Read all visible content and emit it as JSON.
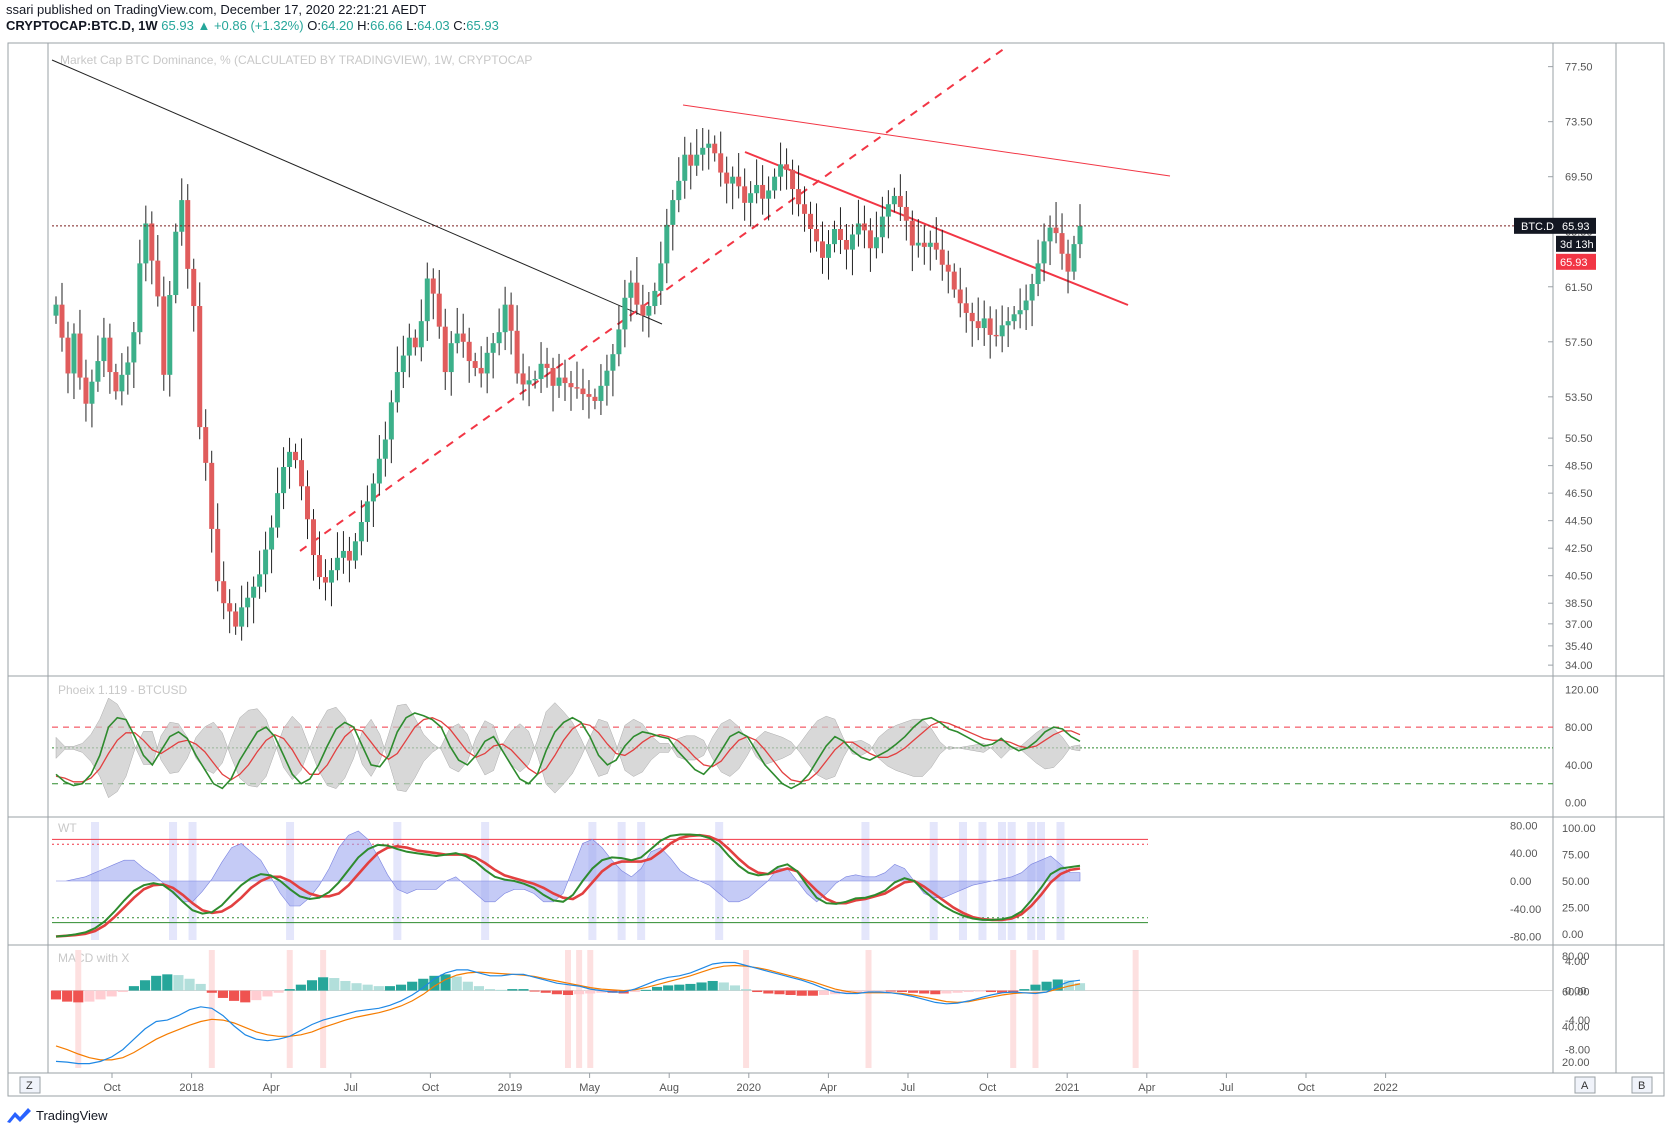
{
  "header": {
    "published": "ssari published on TradingView.com, December 17, 2020 22:21:21 AEDT",
    "symbol": "CRYPTOCAP:BTC.D, 1W",
    "price": "65.93",
    "change": "▲ +0.86 (+1.32%)",
    "o_label": "O:",
    "o": "64.20",
    "h_label": "H:",
    "h": "66.66",
    "l_label": "L:",
    "l": "64.03",
    "c_label": "C:",
    "c": "65.93"
  },
  "chart_data": [
    {
      "type": "candlestick",
      "title": "Market Cap BTC Dominance, % (CALCULATED BY TRADINGVIEW), 1W, CRYPTOCAP",
      "y_ticks": [
        77.5,
        73.5,
        69.5,
        65.5,
        61.5,
        57.5,
        53.5,
        50.5,
        48.5,
        46.5,
        44.5,
        42.5,
        40.5,
        38.5,
        37.0,
        35.4,
        34.0
      ],
      "ylim": [
        33.5,
        79
      ],
      "x_ticks": [
        "Oct",
        "2018",
        "Apr",
        "Jul",
        "Oct",
        "2019",
        "May",
        "Aug",
        "2020",
        "Apr",
        "Jul",
        "Oct",
        "2021",
        "Apr",
        "Jul",
        "Oct",
        "2022"
      ],
      "last_price": 65.93,
      "price_labels": [
        {
          "text": "BTC.D",
          "value": "65.93"
        },
        {
          "text": "3d 13h"
        },
        {
          "text": "65.93"
        }
      ],
      "colors": {
        "up": "#3cb08a",
        "down": "#e05c5c",
        "trendline_red": "#f23645",
        "trendline_black": "#222222"
      },
      "closes": [
        60.2,
        57.8,
        55.2,
        58.1,
        54.9,
        53.0,
        54.6,
        56.1,
        57.8,
        55.3,
        53.9,
        55.1,
        56.0,
        58.2,
        63.2,
        66.1,
        63.4,
        60.8,
        55.1,
        60.9,
        65.5,
        67.8,
        62.8,
        60.1,
        51.3,
        48.7,
        43.9,
        40.1,
        38.5,
        37.9,
        36.8,
        38.2,
        38.9,
        39.7,
        40.6,
        42.4,
        44.0,
        46.5,
        48.4,
        49.5,
        48.9,
        47.0,
        44.6,
        42.0,
        40.4,
        40.0,
        40.9,
        41.8,
        42.3,
        41.6,
        43.0,
        44.4,
        45.9,
        47.2,
        49.0,
        50.4,
        53.1,
        55.3,
        56.5,
        57.8,
        57.1,
        59.0,
        62.1,
        61.0,
        58.6,
        55.3,
        57.4,
        58.1,
        57.5,
        56.1,
        55.6,
        55.2,
        56.7,
        57.4,
        58.2,
        60.2,
        58.3,
        55.2,
        54.4,
        54.7,
        54.8,
        55.9,
        55.6,
        54.3,
        54.9,
        54.5,
        54.2,
        54.1,
        53.7,
        53.5,
        53.2,
        54.3,
        55.4,
        56.6,
        58.4,
        60.7,
        61.8,
        60.2,
        59.4,
        60.1,
        61.2,
        63.2,
        66.0,
        67.8,
        69.2,
        71.1,
        70.3,
        71.1,
        71.6,
        71.9,
        71.2,
        69.8,
        69.0,
        69.5,
        68.8,
        67.6,
        68.3,
        68.9,
        67.9,
        68.5,
        69.5,
        70.4,
        70.0,
        68.6,
        67.5,
        66.8,
        65.7,
        64.8,
        63.6,
        64.6,
        65.7,
        64.9,
        64.2,
        65.3,
        66.1,
        65.6,
        64.3,
        65.1,
        66.6,
        67.5,
        68.1,
        67.3,
        66.3,
        64.5,
        64.7,
        64.4,
        64.7,
        64.2,
        63.1,
        62.6,
        61.3,
        60.3,
        59.6,
        59.0,
        58.5,
        59.2,
        58.0,
        57.9,
        58.7,
        59.0,
        59.5,
        59.8,
        60.5,
        61.7,
        63.2,
        64.8,
        65.8,
        65.4,
        63.9,
        62.6,
        64.6,
        65.93
      ]
    },
    {
      "type": "line",
      "title": "Phoeix 1.119 - BTCUSD",
      "y_ticks": [
        120.0,
        80.0,
        40.0,
        0.0
      ],
      "ylim": [
        -10,
        130
      ],
      "levels": [
        80,
        58,
        20
      ],
      "series": [
        {
          "values": [
            30,
            22,
            18,
            20,
            30,
            50,
            80,
            90,
            88,
            70,
            50,
            40,
            55,
            70,
            75,
            68,
            50,
            35,
            20,
            15,
            25,
            45,
            60,
            75,
            80,
            70,
            50,
            30,
            20,
            25,
            40,
            60,
            78,
            85,
            80,
            60,
            40,
            38,
            50,
            75,
            90,
            95,
            92,
            88,
            80,
            60,
            45,
            40,
            50,
            65,
            70,
            55,
            40,
            25,
            20,
            30,
            55,
            75,
            85,
            90,
            85,
            70,
            50,
            40,
            45,
            60,
            70,
            75,
            73,
            70,
            68,
            55,
            45,
            35,
            30,
            40,
            55,
            70,
            75,
            70,
            55,
            40,
            30,
            20,
            15,
            20,
            30,
            45,
            60,
            70,
            65,
            55,
            48,
            45,
            50,
            55,
            62,
            70,
            80,
            88,
            90,
            85,
            78,
            75,
            70,
            65,
            60,
            62,
            68,
            60,
            55,
            58,
            65,
            75,
            80,
            78,
            70,
            65
          ]
        },
        {
          "values": [
            28,
            26,
            22,
            22,
            26,
            36,
            52,
            66,
            74,
            74,
            66,
            56,
            52,
            58,
            64,
            66,
            62,
            54,
            42,
            30,
            24,
            30,
            40,
            54,
            66,
            72,
            68,
            56,
            40,
            30,
            30,
            40,
            56,
            70,
            78,
            76,
            64,
            52,
            46,
            52,
            66,
            80,
            88,
            90,
            86,
            78,
            66,
            54,
            48,
            52,
            60,
            62,
            56,
            46,
            36,
            30,
            36,
            50,
            66,
            78,
            84,
            82,
            74,
            62,
            52,
            50,
            56,
            64,
            70,
            72,
            70,
            66,
            58,
            48,
            40,
            38,
            44,
            56,
            66,
            70,
            66,
            56,
            44,
            32,
            24,
            22,
            24,
            32,
            44,
            56,
            64,
            64,
            58,
            52,
            48,
            48,
            52,
            58,
            66,
            74,
            82,
            86,
            84,
            80,
            76,
            72,
            68,
            66,
            66,
            64,
            60,
            58,
            60,
            66,
            72,
            76,
            76,
            72
          ]
        }
      ],
      "colors": [
        "#2e8b2e",
        "#e24040"
      ]
    },
    {
      "type": "line",
      "title": "WT",
      "y_ticks": [
        80.0,
        40.0,
        0.0,
        -40.0,
        -80.0
      ],
      "y_ticks_right": [
        100.0,
        75.0,
        50.0,
        25.0,
        0.0
      ],
      "ylim": [
        -85,
        85
      ],
      "levels": [
        60,
        53,
        -53,
        -60
      ],
      "series": [
        {
          "values": [
            -80,
            -79,
            -77,
            -74,
            -68,
            -58,
            -44,
            -28,
            -14,
            -6,
            -3,
            -6,
            -16,
            -30,
            -42,
            -47,
            -45,
            -35,
            -20,
            -6,
            4,
            10,
            8,
            0,
            -12,
            -22,
            -26,
            -24,
            -16,
            -2,
            16,
            34,
            46,
            52,
            51,
            46,
            42,
            40,
            38,
            36,
            38,
            40,
            36,
            28,
            16,
            6,
            2,
            0,
            -4,
            -10,
            -20,
            -28,
            -30,
            -20,
            0,
            18,
            30,
            34,
            33,
            30,
            34,
            46,
            58,
            65,
            67,
            67,
            66,
            62,
            52,
            36,
            22,
            12,
            8,
            10,
            20,
            24,
            14,
            -6,
            -24,
            -32,
            -33,
            -30,
            -25,
            -24,
            -20,
            -14,
            -2,
            4,
            0,
            -14,
            -26,
            -36,
            -44,
            -50,
            -54,
            -56,
            -56,
            -55,
            -52,
            -44,
            -28,
            -10,
            10,
            18,
            20,
            22
          ]
        },
        {
          "values": [
            -80,
            -79,
            -78,
            -76,
            -72,
            -64,
            -52,
            -38,
            -24,
            -12,
            -6,
            -5,
            -10,
            -20,
            -32,
            -42,
            -46,
            -44,
            -36,
            -24,
            -10,
            0,
            6,
            6,
            0,
            -10,
            -18,
            -22,
            -22,
            -18,
            -6,
            10,
            26,
            40,
            48,
            50,
            48,
            44,
            42,
            40,
            38,
            38,
            38,
            34,
            26,
            16,
            8,
            4,
            0,
            -4,
            -10,
            -18,
            -24,
            -26,
            -18,
            -2,
            14,
            24,
            28,
            28,
            28,
            32,
            42,
            54,
            62,
            65,
            66,
            64,
            58,
            46,
            32,
            20,
            12,
            10,
            14,
            18,
            14,
            0,
            -14,
            -26,
            -32,
            -32,
            -28,
            -26,
            -22,
            -18,
            -10,
            -2,
            0,
            -8,
            -18,
            -28,
            -38,
            -46,
            -52,
            -55,
            -56,
            -56,
            -54,
            -48,
            -36,
            -20,
            -2,
            10,
            16,
            18
          ]
        }
      ],
      "colors": [
        "#2e8b2e",
        "#e24040"
      ]
    },
    {
      "type": "bar",
      "title": "MACD with X",
      "y_ticks": [
        4.0,
        0.0,
        -4.0,
        -8.0
      ],
      "y_ticks_right": [
        80.0,
        60.0,
        40.0,
        20.0
      ],
      "ylim": [
        -10.5,
        5.5
      ],
      "macd": [
        -9.6,
        -9.7,
        -9.9,
        -9.9,
        -9.6,
        -9.0,
        -8.0,
        -6.6,
        -5.2,
        -4.2,
        -4.0,
        -3.4,
        -2.6,
        -2.2,
        -2.4,
        -3.4,
        -4.8,
        -6.0,
        -6.6,
        -6.8,
        -6.6,
        -6.2,
        -5.4,
        -4.6,
        -4.0,
        -3.6,
        -3.2,
        -2.8,
        -2.6,
        -2.4,
        -2.0,
        -1.4,
        -0.6,
        0.4,
        1.6,
        2.4,
        2.8,
        2.8,
        2.4,
        2.0,
        2.0,
        2.2,
        2.2,
        1.8,
        1.4,
        1.0,
        0.8,
        0.6,
        0.2,
        0.0,
        -0.2,
        -0.2,
        0.2,
        0.8,
        1.4,
        1.8,
        2.0,
        2.4,
        3.0,
        3.6,
        3.8,
        3.8,
        3.4,
        3.0,
        2.6,
        2.2,
        1.8,
        1.4,
        0.9,
        0.3,
        -0.2,
        -0.4,
        -0.4,
        -0.2,
        -0.2,
        -0.3,
        -0.5,
        -0.8,
        -1.2,
        -1.6,
        -1.8,
        -1.7,
        -1.4,
        -1.0,
        -0.6,
        -0.3,
        -0.2,
        -0.3,
        -0.4,
        -0.2,
        0.6,
        1.2,
        1.4
      ],
      "signal": [
        -7.5,
        -8.0,
        -8.6,
        -9.1,
        -9.4,
        -9.4,
        -9.1,
        -8.4,
        -7.5,
        -6.6,
        -5.9,
        -5.3,
        -4.7,
        -4.2,
        -3.9,
        -4.0,
        -4.4,
        -5.0,
        -5.6,
        -6.0,
        -6.2,
        -6.2,
        -6.0,
        -5.6,
        -5.0,
        -4.5,
        -4.0,
        -3.6,
        -3.3,
        -3.0,
        -2.6,
        -2.1,
        -1.4,
        -0.5,
        0.6,
        1.5,
        2.1,
        2.4,
        2.5,
        2.4,
        2.3,
        2.2,
        2.1,
        1.9,
        1.6,
        1.3,
        1.0,
        0.7,
        0.4,
        0.2,
        0.1,
        0.0,
        0.1,
        0.4,
        0.8,
        1.2,
        1.6,
        2.0,
        2.5,
        3.0,
        3.3,
        3.4,
        3.3,
        3.1,
        2.8,
        2.4,
        2.0,
        1.6,
        1.2,
        0.7,
        0.2,
        -0.1,
        -0.3,
        -0.3,
        -0.3,
        -0.3,
        -0.4,
        -0.6,
        -0.9,
        -1.2,
        -1.5,
        -1.6,
        -1.5,
        -1.2,
        -0.9,
        -0.6,
        -0.4,
        -0.3,
        -0.3,
        -0.2,
        0.2,
        0.6,
        0.9
      ],
      "hist": [
        -1.2,
        -1.5,
        -1.6,
        -1.5,
        -1.2,
        -0.8,
        -0.2,
        0.6,
        1.4,
        2.0,
        2.2,
        2.1,
        1.6,
        0.9,
        -0.3,
        -1.0,
        -1.4,
        -1.6,
        -1.3,
        -0.8,
        -0.3,
        0.2,
        0.8,
        1.4,
        1.8,
        1.7,
        1.3,
        1.0,
        0.8,
        0.6,
        0.6,
        0.8,
        1.2,
        1.6,
        2.0,
        2.2,
        1.9,
        1.2,
        0.6,
        0.2,
        0.1,
        0.2,
        0.2,
        -0.1,
        -0.3,
        -0.5,
        -0.6,
        -0.5,
        -0.4,
        -0.3,
        -0.3,
        -0.4,
        -0.2,
        0.1,
        0.5,
        0.7,
        0.8,
        0.9,
        1.1,
        1.3,
        1.1,
        0.7,
        0.2,
        -0.2,
        -0.4,
        -0.5,
        -0.6,
        -0.7,
        -0.7,
        -0.6,
        -0.5,
        -0.4,
        -0.3,
        -0.2,
        -0.1,
        -0.1,
        -0.2,
        -0.3,
        -0.4,
        -0.5,
        -0.4,
        -0.3,
        -0.2,
        -0.1,
        -0.2,
        -0.3,
        -0.3,
        0.2,
        0.8,
        1.2,
        1.5,
        1.4,
        1.0
      ],
      "colors": [
        "#1e88e5",
        "#f57c00"
      ]
    }
  ],
  "right_buttons": {
    "a": "A",
    "b": "B"
  },
  "left_button": "Z",
  "footer": {
    "brand": "TradingView"
  }
}
